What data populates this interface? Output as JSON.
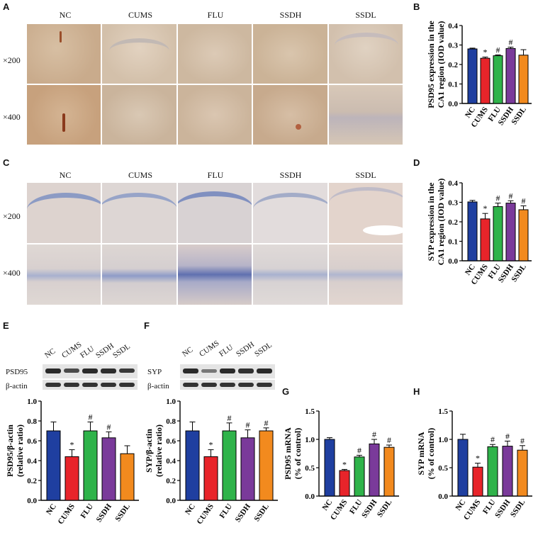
{
  "panels": {
    "A": "A",
    "B": "B",
    "C": "C",
    "D": "D",
    "E": "E",
    "F": "F",
    "G": "G",
    "H": "H"
  },
  "micrographs": {
    "groups": [
      "NC",
      "CUMS",
      "FLU",
      "SSDH",
      "SSDL"
    ],
    "row_labels": [
      "×200",
      "×400"
    ]
  },
  "blots": {
    "E": {
      "lanes": [
        "NC",
        "CUMS",
        "FLU",
        "SSDH",
        "SSDL"
      ],
      "protein": "PSD95",
      "loading": "β-actin"
    },
    "F": {
      "lanes": [
        "NC",
        "CUMS",
        "FLU",
        "SSDH",
        "SSDL"
      ],
      "protein": "SYP",
      "loading": "β-actin"
    }
  },
  "colors": {
    "NC": "#1f3fa0",
    "CUMS": "#e8242a",
    "FLU": "#2fb34a",
    "SSDH": "#7a3a9a",
    "SSDL": "#f28a1e"
  },
  "chart_data": [
    {
      "id": "B",
      "type": "bar",
      "categories": [
        "NC",
        "CUMS",
        "FLU",
        "SSDH",
        "SSDL"
      ],
      "values": [
        0.28,
        0.232,
        0.245,
        0.282,
        0.248
      ],
      "errors": [
        0.004,
        0.006,
        0.004,
        0.007,
        0.028
      ],
      "marks": [
        "",
        "*",
        "#",
        "#",
        ""
      ],
      "ylabel": [
        "PSD95 expression in the",
        "CA1 region (IOD value)"
      ],
      "ylim": [
        0,
        0.4
      ],
      "yticks": [
        "0.0",
        "0.1",
        "0.2",
        "0.3",
        "0.4"
      ],
      "tickvals": [
        0,
        0.1,
        0.2,
        0.3,
        0.4
      ]
    },
    {
      "id": "D",
      "type": "bar",
      "categories": [
        "NC",
        "CUMS",
        "FLU",
        "SSDH",
        "SSDL"
      ],
      "values": [
        0.302,
        0.215,
        0.278,
        0.296,
        0.262
      ],
      "errors": [
        0.008,
        0.028,
        0.018,
        0.012,
        0.02
      ],
      "marks": [
        "",
        "*",
        "#",
        "#",
        "#"
      ],
      "ylabel": [
        "SYP expression in the",
        "CA1 region (IOD value)"
      ],
      "ylim": [
        0,
        0.4
      ],
      "yticks": [
        "0.0",
        "0.1",
        "0.2",
        "0.3",
        "0.4"
      ],
      "tickvals": [
        0,
        0.1,
        0.2,
        0.3,
        0.4
      ]
    },
    {
      "id": "E",
      "type": "bar",
      "categories": [
        "NC",
        "CUMS",
        "FLU",
        "SSDH",
        "SSDL"
      ],
      "values": [
        0.7,
        0.44,
        0.7,
        0.63,
        0.47
      ],
      "errors": [
        0.09,
        0.07,
        0.09,
        0.06,
        0.08
      ],
      "marks": [
        "",
        "*",
        "#",
        "#",
        ""
      ],
      "ylabel": [
        "PSD95/β-actin",
        "(relative ratio)"
      ],
      "ylim": [
        0,
        1.0
      ],
      "yticks": [
        "0.0",
        "0.2",
        "0.4",
        "0.6",
        "0.8",
        "1.0"
      ],
      "tickvals": [
        0,
        0.2,
        0.4,
        0.6,
        0.8,
        1.0
      ]
    },
    {
      "id": "F",
      "type": "bar",
      "categories": [
        "NC",
        "CUMS",
        "FLU",
        "SSDH",
        "SSDL"
      ],
      "values": [
        0.7,
        0.44,
        0.7,
        0.63,
        0.7
      ],
      "errors": [
        0.09,
        0.07,
        0.08,
        0.08,
        0.03
      ],
      "marks": [
        "",
        "*",
        "#",
        "#",
        "#"
      ],
      "ylabel": [
        "SYP/β-actin",
        "(relative ratio)"
      ],
      "ylim": [
        0,
        1.0
      ],
      "yticks": [
        "0.0",
        "0.2",
        "0.4",
        "0.6",
        "0.8",
        "1.0"
      ],
      "tickvals": [
        0,
        0.2,
        0.4,
        0.6,
        0.8,
        1.0
      ]
    },
    {
      "id": "G",
      "type": "bar",
      "categories": [
        "NC",
        "CUMS",
        "FLU",
        "SSDH",
        "SSDL"
      ],
      "values": [
        1.0,
        0.45,
        0.69,
        0.92,
        0.86
      ],
      "errors": [
        0.03,
        0.02,
        0.03,
        0.08,
        0.04
      ],
      "marks": [
        "",
        "*",
        "#",
        "#",
        "#"
      ],
      "ylabel": [
        "PSD95 mRNA",
        "(% of control)"
      ],
      "ylim": [
        0,
        1.5
      ],
      "yticks": [
        "0.0",
        "0.5",
        "1.0",
        "1.5"
      ],
      "tickvals": [
        0,
        0.5,
        1.0,
        1.5
      ]
    },
    {
      "id": "H",
      "type": "bar",
      "categories": [
        "NC",
        "CUMS",
        "FLU",
        "SSDH",
        "SSDL"
      ],
      "values": [
        1.0,
        0.51,
        0.87,
        0.88,
        0.81
      ],
      "errors": [
        0.09,
        0.07,
        0.04,
        0.09,
        0.08
      ],
      "marks": [
        "",
        "*",
        "#",
        "#",
        "#"
      ],
      "ylabel": [
        "SYP mRNA",
        "(% of control)"
      ],
      "ylim": [
        0,
        1.5
      ],
      "yticks": [
        "0.0",
        "0.5",
        "1.0",
        "1.5"
      ],
      "tickvals": [
        0,
        0.5,
        1.0,
        1.5
      ]
    }
  ]
}
